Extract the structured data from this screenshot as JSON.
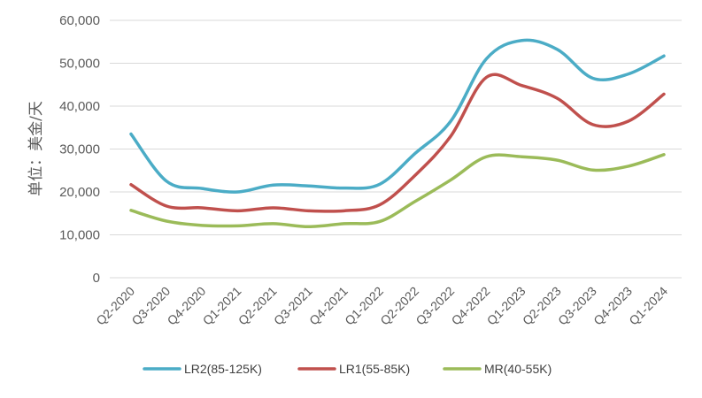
{
  "chart_data": {
    "type": "line",
    "title": "",
    "xlabel": "",
    "ylabel": "单位：美金/天",
    "ylim": [
      0,
      60000
    ],
    "yticks": [
      0,
      10000,
      20000,
      30000,
      40000,
      50000,
      60000
    ],
    "ytick_labels": [
      "0",
      "10,000",
      "20,000",
      "30,000",
      "40,000",
      "50,000",
      "60,000"
    ],
    "grid": true,
    "legend_position": "bottom",
    "categories": [
      "Q2-2020",
      "Q3-2020",
      "Q4-2020",
      "Q1-2021",
      "Q2-2021",
      "Q3-2021",
      "Q4-2021",
      "Q1-2022",
      "Q2-2022",
      "Q3-2022",
      "Q4-2022",
      "Q1-2023",
      "Q2-2023",
      "Q3-2023",
      "Q4-2023",
      "Q1-2024"
    ],
    "series": [
      {
        "name": "LR2(85-125K)",
        "color": "#4BACC6",
        "values": [
          33500,
          22500,
          20800,
          20000,
          21600,
          21400,
          20900,
          21800,
          29000,
          36500,
          51000,
          55300,
          53200,
          46500,
          47500,
          51700
        ]
      },
      {
        "name": "LR1(55-85K)",
        "color": "#C0504D",
        "values": [
          21700,
          16700,
          16300,
          15600,
          16300,
          15600,
          15600,
          17000,
          23900,
          33000,
          46700,
          44800,
          41800,
          35700,
          36500,
          42800
        ]
      },
      {
        "name": "MR(40-55K)",
        "color": "#9BBB59",
        "values": [
          15700,
          13200,
          12200,
          12100,
          12600,
          11900,
          12600,
          13100,
          17800,
          22800,
          28200,
          28200,
          27400,
          25100,
          26000,
          28700
        ]
      }
    ]
  }
}
